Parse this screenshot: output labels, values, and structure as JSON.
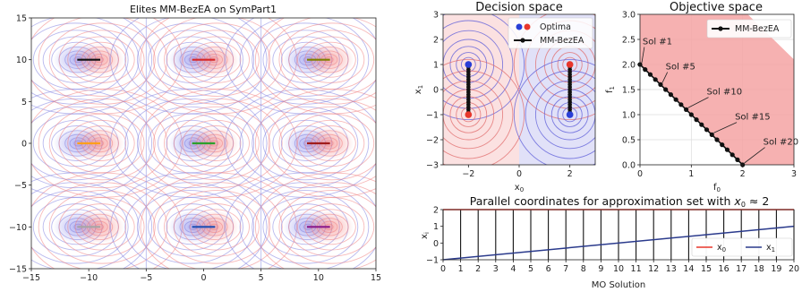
{
  "chart_data": [
    {
      "type": "line",
      "title": "Elites MM-BezEA on SymPart1",
      "xlim": [
        -15,
        15
      ],
      "ylim": [
        -15,
        15
      ],
      "xticks": [
        -15,
        -10,
        -5,
        0,
        5,
        10,
        15
      ],
      "yticks": [
        -15,
        -10,
        -5,
        0,
        5,
        10,
        15
      ],
      "contours": {
        "center_x": [
          -10,
          0,
          10
        ],
        "center_y": [
          -10,
          0,
          10
        ],
        "center_colors": [
          "#7f7fe0",
          "#f07f7f"
        ]
      },
      "segments": [
        {
          "y": 10,
          "x": [
            -11,
            -9
          ],
          "color": "#111111"
        },
        {
          "y": 10,
          "x": [
            -1,
            1
          ],
          "color": "#d62728"
        },
        {
          "y": 10,
          "x": [
            9,
            11
          ],
          "color": "#808000"
        },
        {
          "y": 0,
          "x": [
            -11,
            -9
          ],
          "color": "#ff9f1c"
        },
        {
          "y": 0,
          "x": [
            -1,
            1
          ],
          "color": "#2ca02c"
        },
        {
          "y": 0,
          "x": [
            9,
            11
          ],
          "color": "#a01c1c"
        },
        {
          "y": -10,
          "x": [
            -11,
            -9
          ],
          "color": "#a6a6a6"
        },
        {
          "y": -10,
          "x": [
            -1,
            1
          ],
          "color": "#1f4fb4"
        },
        {
          "y": -10,
          "x": [
            9,
            11
          ],
          "color": "#8b1a8b"
        }
      ]
    },
    {
      "type": "scatter",
      "title": "Decision space",
      "xlabel": "x",
      "xlabel_sub": "0",
      "ylabel": "x",
      "ylabel_sub": "1",
      "xlim": [
        -3,
        3
      ],
      "ylim": [
        -3,
        3
      ],
      "xticks": [
        -2,
        0,
        2
      ],
      "yticks": [
        -3,
        -2,
        -1,
        0,
        1,
        2,
        3
      ],
      "optima": [
        {
          "x": -2,
          "y": 1,
          "color": "#2a3fd6"
        },
        {
          "x": -2,
          "y": -1,
          "color": "#e8372c"
        },
        {
          "x": 2,
          "y": 1,
          "color": "#e8372c"
        },
        {
          "x": 2,
          "y": -1,
          "color": "#2a3fd6"
        }
      ],
      "sets": [
        {
          "x": -2,
          "y": [
            -1,
            1
          ]
        },
        {
          "x": 2,
          "y": [
            -1,
            1
          ]
        }
      ],
      "legend": [
        {
          "label": "Optima",
          "colors": [
            "#2a3fd6",
            "#e8372c"
          ]
        },
        {
          "label": "MM-BezEA",
          "color": "#111111"
        }
      ],
      "legend_position": "top-right"
    },
    {
      "type": "line",
      "title": "Objective space",
      "xlabel": "f",
      "xlabel_sub": "0",
      "ylabel": "f",
      "ylabel_sub": "1",
      "xlim": [
        0,
        3
      ],
      "ylim": [
        0,
        3
      ],
      "xticks": [
        0,
        1,
        2,
        3
      ],
      "yticks": [
        0.0,
        0.5,
        1.0,
        1.5,
        2.0,
        2.5,
        3.0
      ],
      "ytick_labels": [
        "0.0",
        "0.5",
        "1.0",
        "1.5",
        "2.0",
        "2.5",
        "3.0"
      ],
      "feasible_region": [
        [
          0,
          2
        ],
        [
          2,
          0
        ],
        [
          3,
          0
        ],
        [
          3,
          2.1
        ],
        [
          2.1,
          3
        ],
        [
          0,
          3
        ]
      ],
      "front": {
        "x0": 0,
        "y0": 2,
        "x1": 2,
        "y1": 0,
        "n_points": 21
      },
      "legend": [
        {
          "label": "MM-BezEA",
          "color": "#111111"
        }
      ],
      "legend_position": "top-right",
      "annotations": [
        {
          "text": "Sol #1",
          "x": 0.05,
          "y": 2.4,
          "px": 0.0,
          "py": 2.0
        },
        {
          "text": "Sol #5",
          "x": 0.5,
          "y": 1.9,
          "px": 0.4,
          "py": 1.6
        },
        {
          "text": "Sol #10",
          "x": 1.3,
          "y": 1.4,
          "px": 0.9,
          "py": 1.1
        },
        {
          "text": "Sol #15",
          "x": 1.85,
          "y": 0.9,
          "px": 1.4,
          "py": 0.6
        },
        {
          "text": "Sol #20",
          "x": 2.4,
          "y": 0.4,
          "px": 2.0,
          "py": 0.0
        }
      ]
    },
    {
      "type": "line",
      "title": "Parallel coordinates for approximation set with ",
      "title_math": "x",
      "title_sub": "0",
      "title_tail": " ≈ 2",
      "xlabel": "MO Solution",
      "ylabel": "x",
      "ylabel_sub": "i",
      "xlim": [
        0,
        20
      ],
      "ylim": [
        -1,
        2
      ],
      "xticks": [
        0,
        1,
        2,
        3,
        4,
        5,
        6,
        7,
        8,
        9,
        10,
        11,
        12,
        13,
        14,
        15,
        16,
        17,
        18,
        19,
        20
      ],
      "yticks": [
        -1,
        0,
        1,
        2
      ],
      "series": [
        {
          "name": "x",
          "sub": "0",
          "color": "#e8372c",
          "x": [
            0,
            20
          ],
          "y": [
            2,
            2
          ]
        },
        {
          "name": "x",
          "sub": "1",
          "color": "#2a3a8c",
          "x": [
            0,
            20
          ],
          "y": [
            -1,
            1
          ]
        }
      ],
      "legend_position": "lower-right"
    }
  ]
}
